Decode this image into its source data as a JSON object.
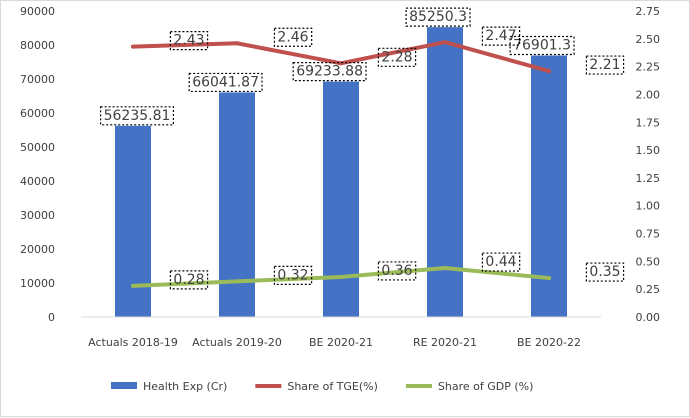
{
  "chart_data": {
    "type": "bar",
    "categories": [
      "Actuals 2018-19",
      "Actuals 2019-20",
      "BE 2020-21",
      "RE 2020-21",
      "BE 2020-22"
    ],
    "series": [
      {
        "name": "Health Exp (Cr)",
        "type": "bar",
        "axis": "left",
        "color": "#4472c4",
        "values": [
          56235.81,
          66041.87,
          69233.88,
          85250.3,
          76901.3
        ],
        "labels": [
          "56235.81",
          "66041.87",
          "69233.88",
          "85250.3",
          "76901.3"
        ]
      },
      {
        "name": "Share of TGE(%)",
        "type": "line",
        "axis": "right",
        "color": "#c0504d",
        "values": [
          2.43,
          2.46,
          2.28,
          2.47,
          2.21
        ],
        "labels": [
          "2.43",
          "2.46",
          "2.28",
          "2.47",
          "2.21"
        ]
      },
      {
        "name": "Share of GDP (%)",
        "type": "line",
        "axis": "right",
        "color": "#9bbb59",
        "values": [
          0.28,
          0.32,
          0.36,
          0.44,
          0.35
        ],
        "labels": [
          "0.28",
          "0.32",
          "0.36",
          "0.44",
          "0.35"
        ]
      }
    ],
    "y_left": {
      "min": 0,
      "max": 90000,
      "step": 10000,
      "ticks": [
        "0",
        "10000",
        "20000",
        "30000",
        "40000",
        "50000",
        "60000",
        "70000",
        "80000",
        "90000"
      ]
    },
    "y_right": {
      "min": 0,
      "max": 2.75,
      "step": 0.25,
      "ticks": [
        "0.00",
        "0.25",
        "0.50",
        "0.75",
        "1.00",
        "1.25",
        "1.50",
        "1.75",
        "2.00",
        "2.25",
        "2.50",
        "2.75"
      ]
    },
    "title": "",
    "xlabel": "",
    "ylabel": "",
    "grid": false,
    "legend": "bottom"
  }
}
